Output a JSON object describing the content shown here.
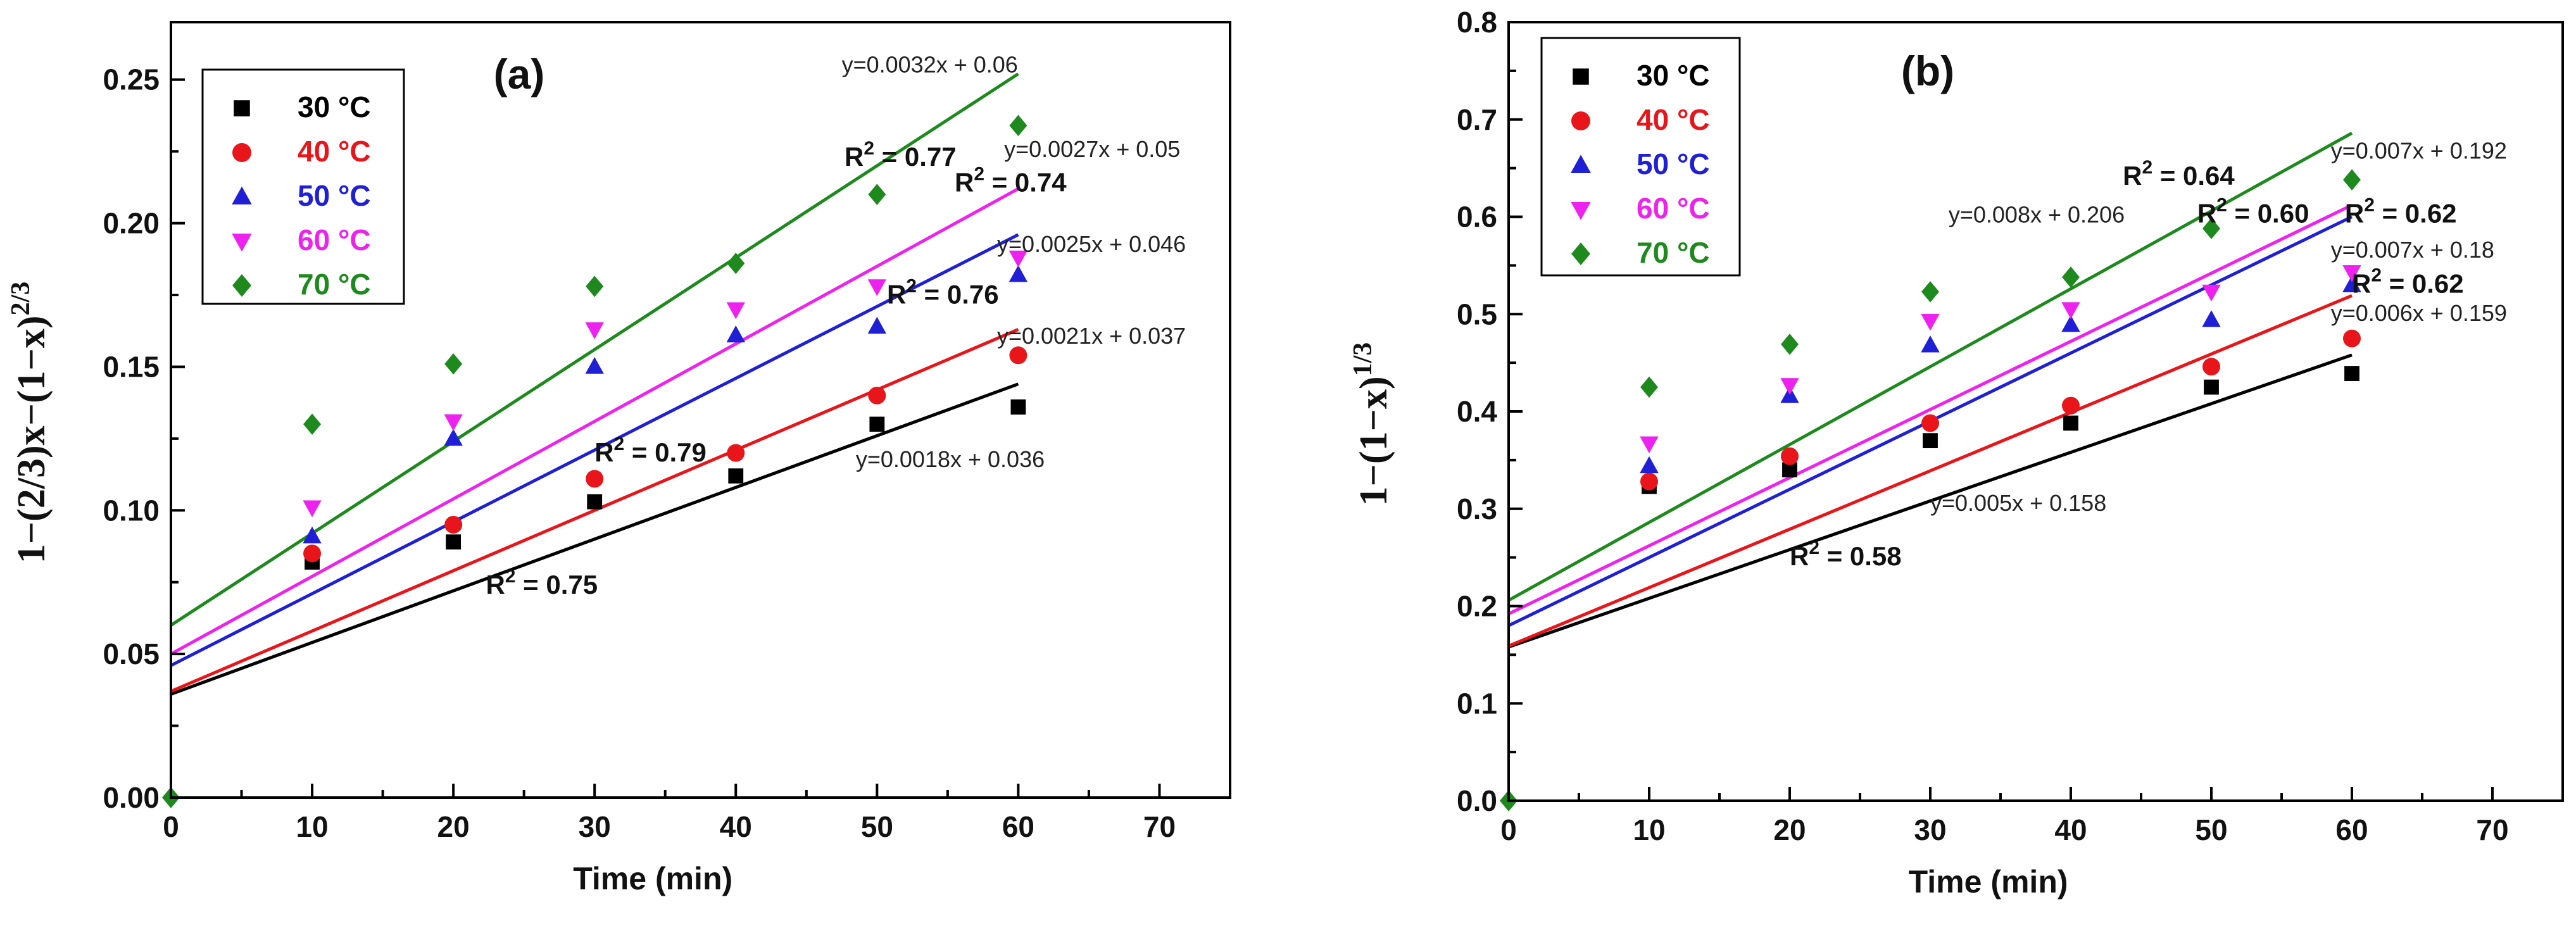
{
  "chart_data": [
    {
      "type": "scatter",
      "panel_label": "(a)",
      "xlabel": "Time (min)",
      "ylabel_main": "1−(2/3)x−(1−x)",
      "ylabel_sup": "2/3",
      "xlim": [
        0,
        75
      ],
      "ylim": [
        0,
        0.27
      ],
      "xticks": [
        0,
        10,
        20,
        30,
        40,
        50,
        60,
        70
      ],
      "yticks": [
        0.0,
        0.05,
        0.1,
        0.15,
        0.2,
        0.25
      ],
      "ytick_labels": [
        "0.00",
        "0.05",
        "0.10",
        "0.15",
        "0.20",
        "0.25"
      ],
      "legend_position": "top-left",
      "series": [
        {
          "name": "30 °C",
          "color": "#000000",
          "marker": "square",
          "x": [
            10,
            20,
            30,
            40,
            50,
            60
          ],
          "y": [
            0.082,
            0.089,
            0.103,
            0.112,
            0.13,
            0.136
          ],
          "fit": {
            "slope": 0.0018,
            "intercept": 0.036,
            "x_range": [
              0,
              60
            ]
          }
        },
        {
          "name": "40 °C",
          "color": "#e8151b",
          "marker": "circle",
          "x": [
            10,
            20,
            30,
            40,
            50,
            60
          ],
          "y": [
            0.085,
            0.095,
            0.111,
            0.12,
            0.14,
            0.154
          ],
          "fit": {
            "slope": 0.0021,
            "intercept": 0.037,
            "x_range": [
              0,
              60
            ]
          }
        },
        {
          "name": "50 °C",
          "color": "#1f1fd6",
          "marker": "triangle-up",
          "x": [
            10,
            20,
            30,
            40,
            50,
            60
          ],
          "y": [
            0.091,
            0.125,
            0.15,
            0.161,
            0.164,
            0.182
          ],
          "fit": {
            "slope": 0.0025,
            "intercept": 0.046,
            "x_range": [
              0,
              60
            ]
          }
        },
        {
          "name": "60 °C",
          "color": "#ee22ee",
          "marker": "triangle-down",
          "x": [
            10,
            20,
            30,
            40,
            50,
            60
          ],
          "y": [
            0.101,
            0.131,
            0.163,
            0.17,
            0.178,
            0.188
          ],
          "fit": {
            "slope": 0.0027,
            "intercept": 0.05,
            "x_range": [
              0,
              60
            ]
          }
        },
        {
          "name": "70 °C",
          "color": "#1e8a1e",
          "marker": "diamond",
          "x": [
            0,
            10,
            20,
            30,
            40,
            50,
            60
          ],
          "y": [
            0,
            0.13,
            0.151,
            0.178,
            0.186,
            0.21,
            0.234
          ],
          "fit": {
            "slope": 0.0032,
            "intercept": 0.06,
            "x_range": [
              0,
              60
            ]
          }
        }
      ],
      "annotations": [
        {
          "kind": "eq",
          "text": "y=0.0032x + 0.06",
          "x": 47.5,
          "y": 0.2525
        },
        {
          "kind": "r2",
          "text": "= 0.77",
          "x": 47.7,
          "y": 0.22
        },
        {
          "kind": "eq",
          "text": "y=0.0027x + 0.05",
          "x": 59.0,
          "y": 0.223
        },
        {
          "kind": "r2",
          "text": "= 0.74",
          "x": 55.5,
          "y": 0.211
        },
        {
          "kind": "eq",
          "text": "y=0.0025x + 0.046",
          "x": 58.5,
          "y": 0.19
        },
        {
          "kind": "r2",
          "text": "= 0.76",
          "x": 50.7,
          "y": 0.172
        },
        {
          "kind": "eq",
          "text": "y=0.0021x + 0.037",
          "x": 58.5,
          "y": 0.158
        },
        {
          "kind": "r2",
          "text": "= 0.79",
          "x": 30.0,
          "y": 0.117
        },
        {
          "kind": "eq",
          "text": "y=0.0018x + 0.036",
          "x": 48.5,
          "y": 0.115
        },
        {
          "kind": "r2",
          "text": "= 0.75",
          "x": 22.3,
          "y": 0.071
        }
      ]
    },
    {
      "type": "scatter",
      "panel_label": "(b)",
      "xlabel": "Time (min)",
      "ylabel_main": "1−(1−x)",
      "ylabel_sup": "1/3",
      "xlim": [
        0,
        75
      ],
      "ylim": [
        0,
        0.8
      ],
      "xticks": [
        0,
        10,
        20,
        30,
        40,
        50,
        60,
        70
      ],
      "yticks": [
        0.0,
        0.1,
        0.2,
        0.3,
        0.4,
        0.5,
        0.6,
        0.7,
        0.8
      ],
      "ytick_labels": [
        "0.0",
        "0.1",
        "0.2",
        "0.3",
        "0.4",
        "0.5",
        "0.6",
        "0.7",
        "0.8"
      ],
      "legend_position": "top-left",
      "series": [
        {
          "name": "30 °C",
          "color": "#000000",
          "marker": "square",
          "x": [
            10,
            20,
            30,
            40,
            50,
            60
          ],
          "y": [
            0.323,
            0.34,
            0.37,
            0.388,
            0.425,
            0.439
          ],
          "fit": {
            "slope": 0.005,
            "intercept": 0.158,
            "x_range": [
              0,
              60
            ]
          }
        },
        {
          "name": "40 °C",
          "color": "#e8151b",
          "marker": "circle",
          "x": [
            10,
            20,
            30,
            40,
            50,
            60
          ],
          "y": [
            0.328,
            0.354,
            0.388,
            0.406,
            0.446,
            0.475
          ],
          "fit": {
            "slope": 0.006,
            "intercept": 0.159,
            "x_range": [
              0,
              60
            ]
          }
        },
        {
          "name": "50 °C",
          "color": "#1f1fd6",
          "marker": "triangle-up",
          "x": [
            10,
            20,
            30,
            40,
            50,
            60
          ],
          "y": [
            0.344,
            0.416,
            0.468,
            0.489,
            0.494,
            0.53
          ],
          "fit": {
            "slope": 0.007,
            "intercept": 0.18,
            "x_range": [
              0,
              60
            ]
          }
        },
        {
          "name": "60 °C",
          "color": "#ee22ee",
          "marker": "triangle-down",
          "x": [
            10,
            20,
            30,
            40,
            50,
            60
          ],
          "y": [
            0.367,
            0.427,
            0.493,
            0.505,
            0.523,
            0.543
          ],
          "fit": {
            "slope": 0.007,
            "intercept": 0.192,
            "x_range": [
              0,
              60
            ]
          }
        },
        {
          "name": "70 °C",
          "color": "#1e8a1e",
          "marker": "diamond",
          "x": [
            0,
            10,
            20,
            30,
            40,
            50,
            60
          ],
          "y": [
            0,
            0.425,
            0.469,
            0.523,
            0.538,
            0.588,
            0.638
          ],
          "fit": {
            "slope": 0.008,
            "intercept": 0.206,
            "x_range": [
              0,
              60
            ]
          }
        }
      ],
      "annotations": [
        {
          "kind": "eq",
          "text": "y=0.007x + 0.192",
          "x": 58.5,
          "y": 0.66
        },
        {
          "kind": "r2",
          "text": "= 0.64",
          "x": 43.7,
          "y": 0.633
        },
        {
          "kind": "eq",
          "text": "y=0.008x + 0.206",
          "x": 31.3,
          "y": 0.594
        },
        {
          "kind": "r2",
          "text": "= 0.60",
          "x": 49.0,
          "y": 0.594
        },
        {
          "kind": "r2",
          "text": "= 0.62",
          "x": 59.5,
          "y": 0.594
        },
        {
          "kind": "eq",
          "text": "y=0.007x + 0.18",
          "x": 58.5,
          "y": 0.558
        },
        {
          "kind": "r2",
          "text": "= 0.62",
          "x": 60.0,
          "y": 0.522
        },
        {
          "kind": "eq",
          "text": "y=0.006x + 0.159",
          "x": 58.5,
          "y": 0.493
        },
        {
          "kind": "eq",
          "text": "y=0.005x + 0.158",
          "x": 30.0,
          "y": 0.298
        },
        {
          "kind": "r2",
          "text": "= 0.58",
          "x": 20.0,
          "y": 0.242
        }
      ]
    }
  ]
}
